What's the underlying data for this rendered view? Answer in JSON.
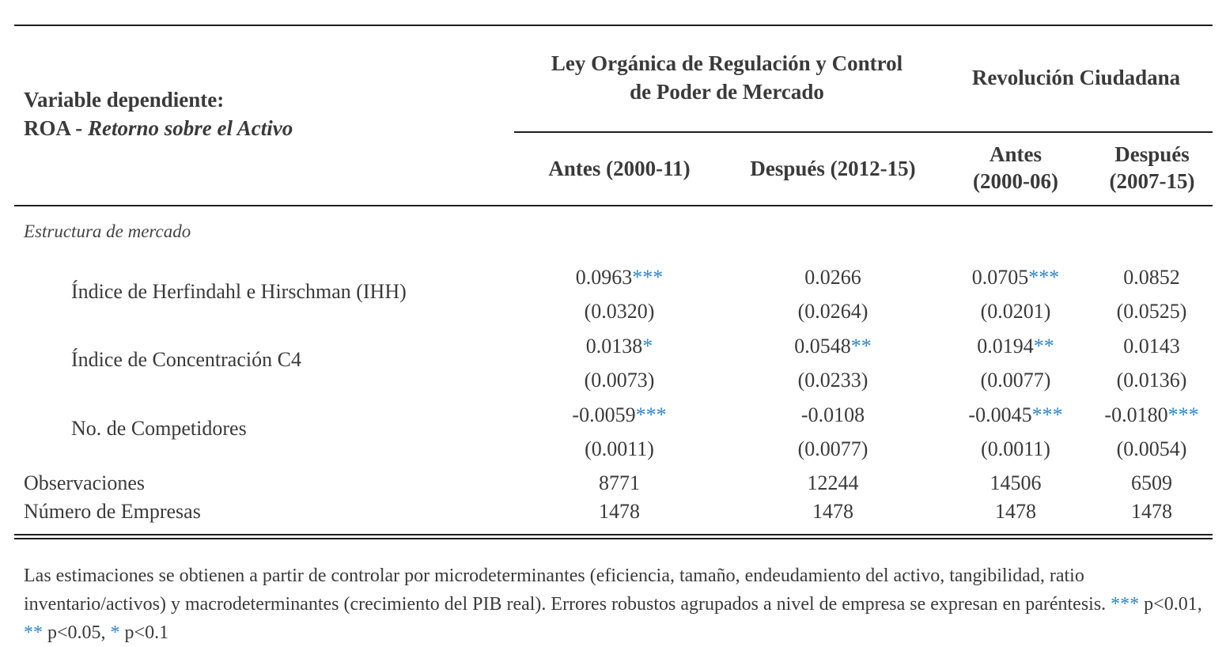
{
  "header": {
    "dependent_title": "Variable dependiente:",
    "dependent_roa": "ROA - ",
    "dependent_roa_desc": "Retorno sobre el Activo",
    "group1_line1": "Ley Orgánica de Regulación y Control",
    "group1_line2": "de Poder de Mercado",
    "group2": "Revolución Ciudadana",
    "subheaders": [
      {
        "line1": "Antes (2000-11)",
        "line2": ""
      },
      {
        "line1": "Después (2012-15)",
        "line2": ""
      },
      {
        "line1": "Antes",
        "line2": "(2000-06)"
      },
      {
        "line1": "Después",
        "line2": "(2007-15)"
      }
    ]
  },
  "section_label": "Estructura de mercado",
  "rows": [
    {
      "label": "Índice de Herfindahl e Hirschman (IHH)",
      "coef": [
        {
          "value": "0.0963",
          "stars": "***"
        },
        {
          "value": "0.0266",
          "stars": ""
        },
        {
          "value": "0.0705",
          "stars": "***"
        },
        {
          "value": "0.0852",
          "stars": ""
        }
      ],
      "se": [
        "(0.0320)",
        "(0.0264)",
        "(0.0201)",
        "(0.0525)"
      ]
    },
    {
      "label": "Índice de Concentración C4",
      "coef": [
        {
          "value": "0.0138",
          "stars": "*"
        },
        {
          "value": "0.0548",
          "stars": "**"
        },
        {
          "value": "0.0194",
          "stars": "**"
        },
        {
          "value": "0.0143",
          "stars": ""
        }
      ],
      "se": [
        "(0.0073)",
        "(0.0233)",
        "(0.0077)",
        "(0.0136)"
      ]
    },
    {
      "label": "No. de Competidores",
      "coef": [
        {
          "value": "-0.0059",
          "stars": "***"
        },
        {
          "value": "-0.0108",
          "stars": ""
        },
        {
          "value": "-0.0045",
          "stars": "***"
        },
        {
          "value": "-0.0180",
          "stars": "***"
        }
      ],
      "se": [
        "(0.0011)",
        "(0.0077)",
        "(0.0011)",
        "(0.0054)"
      ]
    }
  ],
  "observations": {
    "label": "Observaciones",
    "values": [
      "8771",
      "12244",
      "14506",
      "6509"
    ]
  },
  "firms": {
    "label": "Número de Empresas",
    "values": [
      "1478",
      "1478",
      "1478",
      "1478"
    ]
  },
  "note": {
    "text": "Las estimaciones se obtienen a partir de controlar por microdeterminantes (eficiencia, tamaño, endeudamiento del activo, tangibilidad, ratio inventario/activos) y macrodeterminantes (crecimiento del PIB real). Errores robustos agrupados a nivel de empresa se expresan en paréntesis. ",
    "stars3": "***",
    "p3": " p<0.01, ",
    "stars2": "**",
    "p2": " p<0.05, ",
    "stars1": "*",
    "p1": " p<0.1"
  },
  "colors": {
    "stars": "#2f86c8",
    "rule": "#1e1e1e",
    "text": "#3a3a3a"
  }
}
